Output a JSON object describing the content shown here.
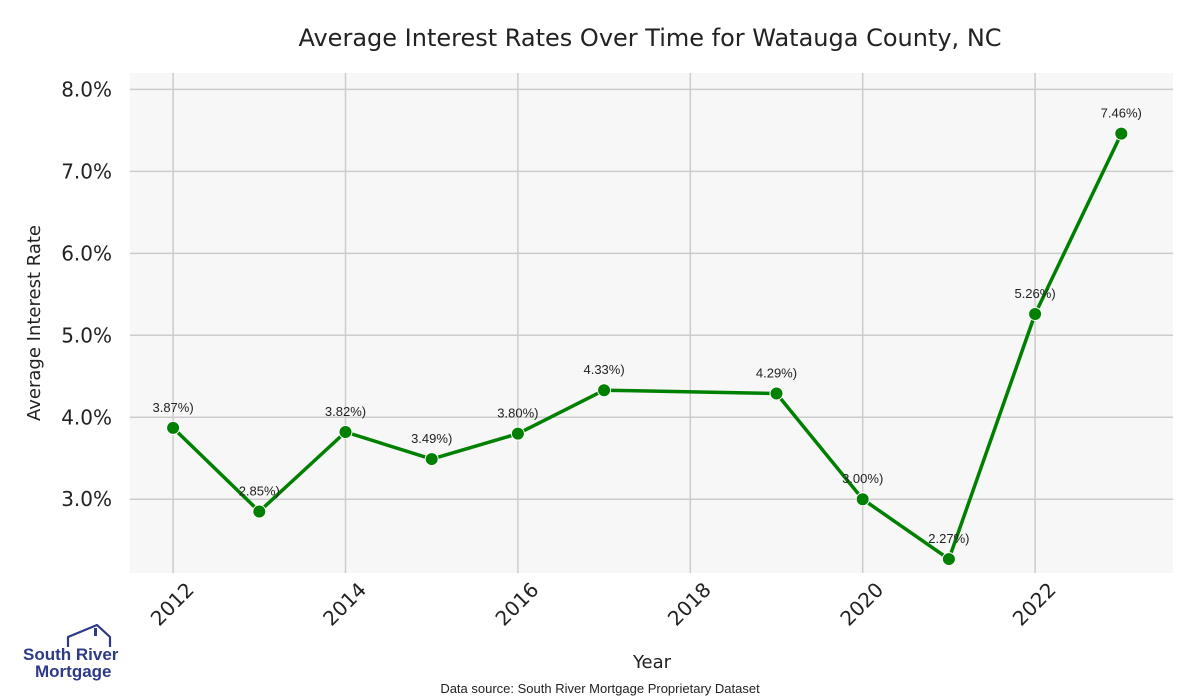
{
  "chart_data": {
    "type": "line",
    "title": "Average Interest Rates Over Time for Watauga County, NC",
    "xlabel": "Year",
    "ylabel": "Average Interest Rate",
    "x": [
      2012,
      2013,
      2014,
      2015,
      2016,
      2017,
      2019,
      2020,
      2021,
      2022,
      2023
    ],
    "values": [
      3.87,
      2.85,
      3.82,
      3.49,
      3.8,
      4.33,
      4.29,
      3.0,
      2.27,
      5.26,
      7.46
    ],
    "data_labels": [
      "3.87%)",
      "2.85%)",
      "3.82%)",
      "3.49%)",
      "3.80%)",
      "4.33%)",
      "4.29%)",
      "3.00%)",
      "2.27%)",
      "5.26%)",
      "7.46%)"
    ],
    "xlim": [
      2011.5,
      2023.6
    ],
    "ylim": [
      2.1,
      8.2
    ],
    "x_ticks": [
      2012,
      2014,
      2016,
      2018,
      2020,
      2022
    ],
    "x_tick_labels": [
      "2012",
      "2014",
      "2016",
      "2018",
      "2020",
      "2022"
    ],
    "y_ticks": [
      3,
      4,
      5,
      6,
      7,
      8
    ],
    "y_tick_labels": [
      "3.0%",
      "4.0%",
      "5.0%",
      "6.0%",
      "7.0%",
      "8.0%"
    ],
    "grid": true,
    "line_color": "#008000",
    "plot_background": "#f7f7f7",
    "grid_color": "#cccccc"
  },
  "footer": {
    "source": "Data source: South River Mortgage Proprietary Dataset"
  },
  "logo": {
    "line1": "South River",
    "line2": "Mortgage",
    "color": "#2e3a87",
    "icon": "house-icon"
  }
}
